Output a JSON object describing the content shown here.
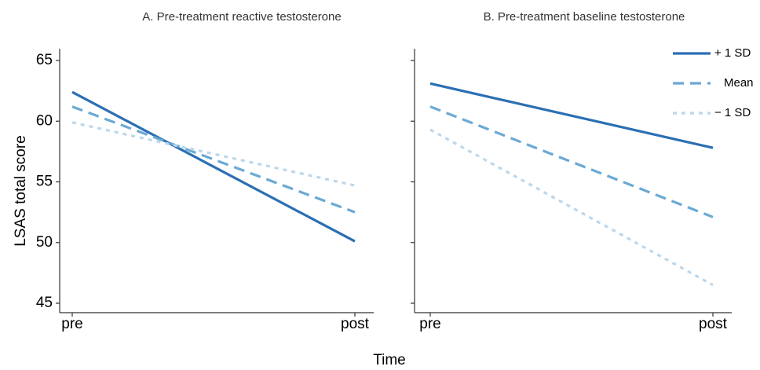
{
  "chart_data": {
    "type": "line",
    "ylabel": "LSAS total score",
    "xlabel": "Time",
    "ylim": [
      45,
      65
    ],
    "yticks": [
      45,
      50,
      55,
      60,
      65
    ],
    "categories": [
      "pre",
      "post"
    ],
    "legend": {
      "placement": "top-right",
      "entries": [
        "+ 1 SD",
        "Mean",
        "− 1 SD"
      ]
    },
    "colors": {
      "plus": "#2b6fb3",
      "mean": "#6aa9d4",
      "minus": "#bcd7eb"
    },
    "panels": [
      {
        "title": "A. Pre-treatment reactive testosterone",
        "series": [
          {
            "name": "+ 1 SD",
            "values": [
              62.4,
              50.1
            ]
          },
          {
            "name": "Mean",
            "values": [
              61.2,
              52.5
            ]
          },
          {
            "name": "− 1 SD",
            "values": [
              59.9,
              54.7
            ]
          }
        ]
      },
      {
        "title": "B. Pre-treatment baseline testosterone",
        "series": [
          {
            "name": "+ 1 SD",
            "values": [
              63.1,
              57.8
            ]
          },
          {
            "name": "Mean",
            "values": [
              61.2,
              52.1
            ]
          },
          {
            "name": "− 1 SD",
            "values": [
              59.3,
              46.5
            ]
          }
        ]
      }
    ]
  }
}
